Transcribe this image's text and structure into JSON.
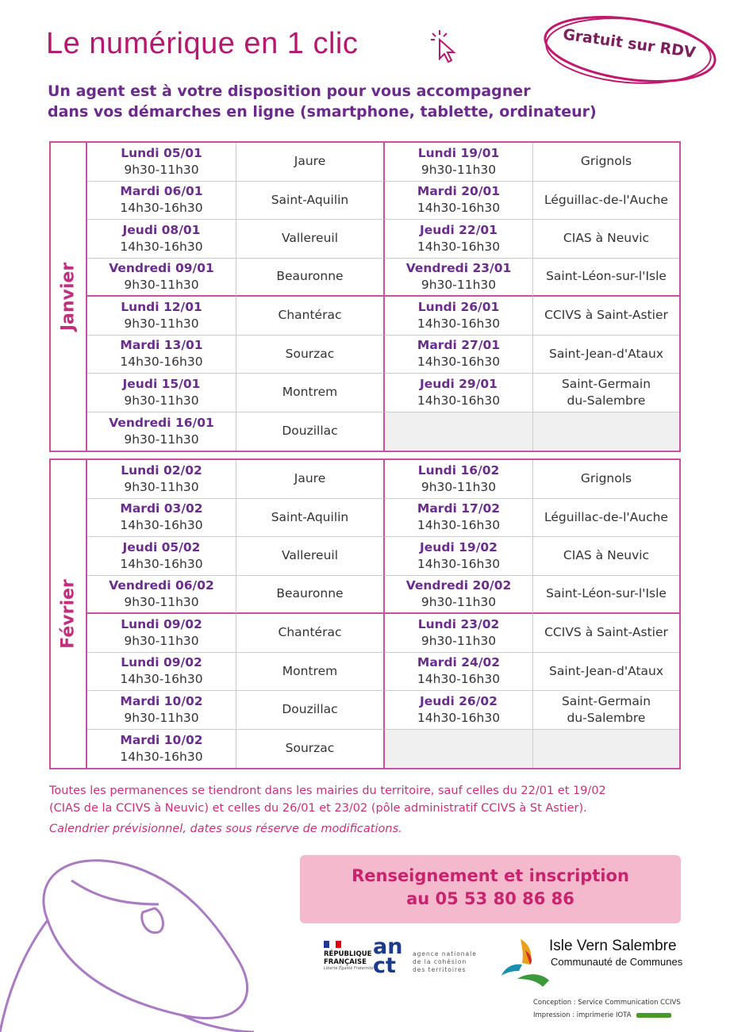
{
  "header": {
    "title": "Le numérique en 1 clic",
    "cursor_icon": "click-cursor-icon",
    "badge": "Gratuit sur RDV",
    "subtitle_line1": "Un agent est à votre disposition pour vous accompagner",
    "subtitle_line2": "dans vos démarches en ligne (smartphone, tablette, ordinateur)"
  },
  "months": [
    {
      "name": "Janvier",
      "rows": [
        {
          "left": {
            "day": "Lundi 05/01",
            "time": "9h30-11h30",
            "place": "Jaure"
          },
          "right": {
            "day": "Lundi 19/01",
            "time": "9h30-11h30",
            "place": "Grignols"
          }
        },
        {
          "left": {
            "day": "Mardi 06/01",
            "time": "14h30-16h30",
            "place": "Saint-Aquilin"
          },
          "right": {
            "day": "Mardi 20/01",
            "time": "14h30-16h30",
            "place": "Léguillac-de-l'Auche"
          }
        },
        {
          "left": {
            "day": "Jeudi 08/01",
            "time": "14h30-16h30",
            "place": "Vallereuil"
          },
          "right": {
            "day": "Jeudi 22/01",
            "time": "14h30-16h30",
            "place": "CIAS à Neuvic"
          }
        },
        {
          "left": {
            "day": "Vendredi 09/01",
            "time": "9h30-11h30",
            "place": "Beauronne"
          },
          "right": {
            "day": "Vendredi 23/01",
            "time": "9h30-11h30",
            "place": "Saint-Léon-sur-l'Isle"
          }
        },
        {
          "left": {
            "day": "Lundi 12/01",
            "time": "9h30-11h30",
            "place": "Chantérac"
          },
          "right": {
            "day": "Lundi 26/01",
            "time": "14h30-16h30",
            "place": "CCIVS à Saint-Astier"
          }
        },
        {
          "left": {
            "day": "Mardi 13/01",
            "time": "14h30-16h30",
            "place": "Sourzac"
          },
          "right": {
            "day": "Mardi 27/01",
            "time": "14h30-16h30",
            "place": "Saint-Jean-d'Ataux"
          }
        },
        {
          "left": {
            "day": "Jeudi 15/01",
            "time": "9h30-11h30",
            "place": "Montrem"
          },
          "right": {
            "day": "Jeudi 29/01",
            "time": "14h30-16h30",
            "place": "Saint-Germain du-Salembre"
          }
        },
        {
          "left": {
            "day": "Vendredi 16/01",
            "time": "9h30-11h30",
            "place": "Douzillac"
          },
          "right": null
        }
      ]
    },
    {
      "name": "Février",
      "rows": [
        {
          "left": {
            "day": "Lundi 02/02",
            "time": "9h30-11h30",
            "place": "Jaure"
          },
          "right": {
            "day": "Lundi 16/02",
            "time": "9h30-11h30",
            "place": "Grignols"
          }
        },
        {
          "left": {
            "day": "Mardi 03/02",
            "time": "14h30-16h30",
            "place": "Saint-Aquilin"
          },
          "right": {
            "day": "Mardi 17/02",
            "time": "14h30-16h30",
            "place": "Léguillac-de-l'Auche"
          }
        },
        {
          "left": {
            "day": "Jeudi 05/02",
            "time": "14h30-16h30",
            "place": "Vallereuil"
          },
          "right": {
            "day": "Jeudi 19/02",
            "time": "14h30-16h30",
            "place": "CIAS à Neuvic"
          }
        },
        {
          "left": {
            "day": "Vendredi 06/02",
            "time": "9h30-11h30",
            "place": "Beauronne"
          },
          "right": {
            "day": "Vendredi 20/02",
            "time": "9h30-11h30",
            "place": "Saint-Léon-sur-l'Isle"
          }
        },
        {
          "left": {
            "day": "Lundi 09/02",
            "time": "9h30-11h30",
            "place": "Chantérac"
          },
          "right": {
            "day": "Lundi 23/02",
            "time": "9h30-11h30",
            "place": "CCIVS à Saint-Astier"
          }
        },
        {
          "left": {
            "day": "Lundi 09/02",
            "time": "14h30-16h30",
            "place": "Montrem"
          },
          "right": {
            "day": "Mardi 24/02",
            "time": "14h30-16h30",
            "place": "Saint-Jean-d'Ataux"
          }
        },
        {
          "left": {
            "day": "Mardi 10/02",
            "time": "9h30-11h30",
            "place": "Douzillac"
          },
          "right": {
            "day": "Jeudi 26/02",
            "time": "14h30-16h30",
            "place": "Saint-Germain du-Salembre"
          }
        },
        {
          "left": {
            "day": "Mardi 10/02",
            "time": "14h30-16h30",
            "place": "Sourzac"
          },
          "right": null
        }
      ]
    }
  ],
  "notes": {
    "line1": "Toutes les permanences se tiendront dans les mairies du territoire, sauf celles du 22/01 et 19/02",
    "line2": "(CIAS de la CCIVS à Neuvic) et celles du 26/01 et 23/02 (pôle administratif CCIVS à St Astier).",
    "line3": "Calendrier prévisionnel, dates sous réserve de modifications."
  },
  "contact": {
    "line1": "Renseignement et inscription",
    "line2": "au 05 53 80 86 86"
  },
  "logos": {
    "rf_line1": "RÉPUBLIQUE",
    "rf_line2": "FRANÇAISE",
    "rf_motto": "Liberté Égalité Fraternité",
    "anct_line1": "an",
    "anct_line2": "ct",
    "anct_text1": "agence nationale",
    "anct_text2": "de la cohésion",
    "anct_text3": "des territoires",
    "ivs_name": "Isle Vern Salembre",
    "ivs_sub": "Communauté de Communes"
  },
  "credits": {
    "line1": "Conception : Service Communication CCIVS",
    "line2": "Impression : imprimerie IOTA"
  },
  "colors": {
    "title": "#b31a6e",
    "subtitle": "#6b2a8c",
    "border": "#c9519e",
    "note": "#c8307a",
    "banner": "#f4b9cd"
  }
}
